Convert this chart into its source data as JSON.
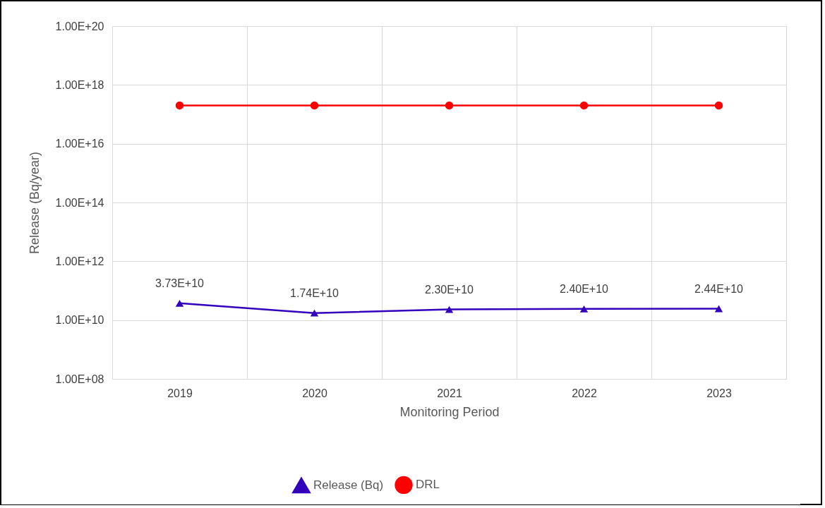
{
  "chart_data": {
    "type": "line",
    "xlabel": "Monitoring Period",
    "ylabel": "Release (Bq/year)",
    "categories": [
      "2019",
      "2020",
      "2021",
      "2022",
      "2023"
    ],
    "series": [
      {
        "name": "Release (Bq)",
        "color": "#3300bb",
        "marker": "triangle",
        "values": [
          37300000000.0,
          17400000000.0,
          23000000000.0,
          24000000000.0,
          24400000000.0
        ],
        "value_labels": [
          "3.73E+10",
          "1.74E+10",
          "2.30E+10",
          "2.40E+10",
          "2.44E+10"
        ]
      },
      {
        "name": "DRL",
        "color": "#ff0000",
        "marker": "circle",
        "values": [
          2e+17,
          2e+17,
          2e+17,
          2e+17,
          2e+17
        ]
      }
    ],
    "log": true,
    "ylim": [
      100000000.0,
      1e+20
    ],
    "yticks": [
      {
        "value": 100000000.0,
        "label": "1.00E+08"
      },
      {
        "value": 10000000000.0,
        "label": "1.00E+10"
      },
      {
        "value": 1000000000000.0,
        "label": "1.00E+12"
      },
      {
        "value": 100000000000000.0,
        "label": "1.00E+14"
      },
      {
        "value": 1e+16,
        "label": "1.00E+16"
      },
      {
        "value": 1e+18,
        "label": "1.00E+18"
      },
      {
        "value": 1e+20,
        "label": "1.00E+20"
      }
    ],
    "grid": true,
    "legend": "bottom"
  }
}
